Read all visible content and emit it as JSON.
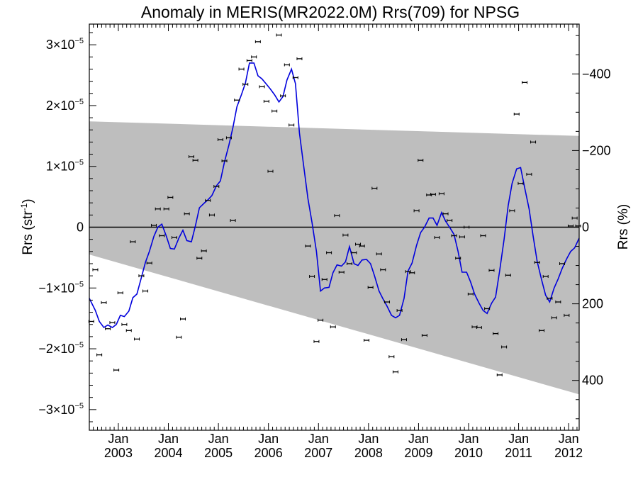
{
  "chart_data": {
    "type": "scatter",
    "title": "Anomaly in MERIS(MR2022.0M) Rrs(709) for NPSG",
    "ylabel_left": "Rrs (str",
    "ylabel_left_sup": "-1",
    "ylabel_left_close": ")",
    "ylabel_right": "Rrs (%)",
    "xlim": [
      2002.42,
      2012.21
    ],
    "ylim_e5": [
      -3.34,
      3.34
    ],
    "yticks_left": [
      {
        "v": 3,
        "mant": "3×10",
        "exp": "−5"
      },
      {
        "v": 2,
        "mant": "2×10",
        "exp": "−5"
      },
      {
        "v": 1,
        "mant": "1×10",
        "exp": "−5"
      },
      {
        "v": 0,
        "mant": "0",
        "exp": ""
      },
      {
        "v": -1,
        "mant": "−1×10",
        "exp": "−5"
      },
      {
        "v": -2,
        "mant": "−2×10",
        "exp": "−5"
      },
      {
        "v": -3,
        "mant": "−3×10",
        "exp": "−5"
      }
    ],
    "right_axis_range_pct": [
      -530,
      530
    ],
    "yticks_right": [
      {
        "v": -400,
        "label": "−400"
      },
      {
        "v": -200,
        "label": "−200"
      },
      {
        "v": 0,
        "label": "0"
      },
      {
        "v": 200,
        "label": "200"
      },
      {
        "v": 400,
        "label": "400"
      }
    ],
    "xticks": [
      {
        "v": 2003.0,
        "top": "Jan",
        "bottom": "2003"
      },
      {
        "v": 2004.0,
        "top": "Jan",
        "bottom": "2004"
      },
      {
        "v": 2005.0,
        "top": "Jan",
        "bottom": "2005"
      },
      {
        "v": 2006.0,
        "top": "Jan",
        "bottom": "2006"
      },
      {
        "v": 2007.0,
        "top": "Jan",
        "bottom": "2007"
      },
      {
        "v": 2008.0,
        "top": "Jan",
        "bottom": "2008"
      },
      {
        "v": 2009.0,
        "top": "Jan",
        "bottom": "2009"
      },
      {
        "v": 2010.0,
        "top": "Jan",
        "bottom": "2010"
      },
      {
        "v": 2011.0,
        "top": "Jan",
        "bottom": "2011"
      },
      {
        "v": 2012.0,
        "top": "Jan",
        "bottom": "2012"
      }
    ],
    "band": {
      "upper": [
        [
          2002.42,
          1.74
        ],
        [
          2012.21,
          1.5
        ]
      ],
      "lower": [
        [
          2002.42,
          -0.45
        ],
        [
          2012.21,
          -2.75
        ]
      ],
      "color": "#bebebe"
    },
    "zero_line": true,
    "series": [
      {
        "kind": "points",
        "color": "#000000",
        "points": [
          [
            2002.46,
            -1.55
          ],
          [
            2002.54,
            -0.7
          ],
          [
            2002.62,
            -2.1
          ],
          [
            2002.71,
            -1.24
          ],
          [
            2002.79,
            -1.67
          ],
          [
            2002.88,
            -1.57
          ],
          [
            2002.96,
            -2.35
          ],
          [
            2003.04,
            -1.08
          ],
          [
            2003.12,
            -1.6
          ],
          [
            2003.21,
            -1.7
          ],
          [
            2003.29,
            -0.24
          ],
          [
            2003.37,
            -1.84
          ],
          [
            2003.46,
            -0.8
          ],
          [
            2003.54,
            -1.05
          ],
          [
            2003.62,
            -0.59
          ],
          [
            2003.71,
            0.03
          ],
          [
            2003.79,
            0.3
          ],
          [
            2003.87,
            -0.14
          ],
          [
            2003.96,
            0.3
          ],
          [
            2004.04,
            0.49
          ],
          [
            2004.12,
            -0.17
          ],
          [
            2004.21,
            -1.81
          ],
          [
            2004.29,
            -1.51
          ],
          [
            2004.37,
            0.22
          ],
          [
            2004.46,
            1.16
          ],
          [
            2004.54,
            1.1
          ],
          [
            2004.62,
            -0.51
          ],
          [
            2004.71,
            -0.39
          ],
          [
            2004.79,
            0.44
          ],
          [
            2004.87,
            0.2
          ],
          [
            2004.96,
            0.67
          ],
          [
            2005.04,
            1.44
          ],
          [
            2005.12,
            1.09
          ],
          [
            2005.21,
            1.47
          ],
          [
            2005.29,
            0.11
          ],
          [
            2005.37,
            2.09
          ],
          [
            2005.46,
            2.6
          ],
          [
            2005.54,
            2.35
          ],
          [
            2005.62,
            2.74
          ],
          [
            2005.71,
            2.8
          ],
          [
            2005.79,
            3.05
          ],
          [
            2005.87,
            2.31
          ],
          [
            2005.96,
            2.07
          ],
          [
            2006.04,
            0.92
          ],
          [
            2006.12,
            1.91
          ],
          [
            2006.21,
            3.16
          ],
          [
            2006.29,
            2.16
          ],
          [
            2006.37,
            2.67
          ],
          [
            2006.46,
            1.68
          ],
          [
            2006.54,
            2.46
          ],
          [
            2006.62,
            2.77
          ],
          [
            2006.79,
            -0.31
          ],
          [
            2006.87,
            -0.81
          ],
          [
            2006.96,
            -1.88
          ],
          [
            2007.04,
            -1.53
          ],
          [
            2007.12,
            -0.86
          ],
          [
            2007.21,
            -0.42
          ],
          [
            2007.29,
            -1.64
          ],
          [
            2007.37,
            0.19
          ],
          [
            2007.46,
            -0.74
          ],
          [
            2007.54,
            -0.13
          ],
          [
            2007.62,
            -0.6
          ],
          [
            2007.71,
            -0.42
          ],
          [
            2007.79,
            -0.28
          ],
          [
            2007.87,
            -0.31
          ],
          [
            2007.96,
            -1.86
          ],
          [
            2008.04,
            -0.99
          ],
          [
            2008.12,
            0.64
          ],
          [
            2008.21,
            -0.44
          ],
          [
            2008.29,
            -0.7
          ],
          [
            2008.37,
            -1.23
          ],
          [
            2008.46,
            -2.13
          ],
          [
            2008.54,
            -2.38
          ],
          [
            2008.62,
            -1.37
          ],
          [
            2008.71,
            -1.85
          ],
          [
            2008.79,
            -0.73
          ],
          [
            2008.87,
            -0.75
          ],
          [
            2008.96,
            0.27
          ],
          [
            2009.04,
            1.1
          ],
          [
            2009.12,
            -1.78
          ],
          [
            2009.21,
            0.53
          ],
          [
            2009.29,
            0.54
          ],
          [
            2009.37,
            -0.17
          ],
          [
            2009.46,
            0.55
          ],
          [
            2009.54,
            0.22
          ],
          [
            2009.62,
            0.11
          ],
          [
            2009.71,
            -0.14
          ],
          [
            2009.79,
            -0.51
          ],
          [
            2009.87,
            -0.16
          ],
          [
            2009.96,
            0.0
          ],
          [
            2010.04,
            -1.1
          ],
          [
            2010.12,
            -1.64
          ],
          [
            2010.21,
            -1.65
          ],
          [
            2010.29,
            -0.14
          ],
          [
            2010.37,
            -1.34
          ],
          [
            2010.46,
            -0.71
          ],
          [
            2010.54,
            -1.75
          ],
          [
            2010.62,
            -2.43
          ],
          [
            2010.71,
            -1.97
          ],
          [
            2010.79,
            -0.79
          ],
          [
            2010.87,
            0.27
          ],
          [
            2010.96,
            1.86
          ],
          [
            2011.04,
            0.72
          ],
          [
            2011.12,
            2.38
          ],
          [
            2011.21,
            0.87
          ],
          [
            2011.29,
            1.4
          ],
          [
            2011.37,
            -0.58
          ],
          [
            2011.46,
            -1.7
          ],
          [
            2011.54,
            -0.81
          ],
          [
            2011.62,
            -1.17
          ],
          [
            2011.71,
            -1.49
          ],
          [
            2011.79,
            -1.23
          ],
          [
            2011.87,
            -0.6
          ],
          [
            2011.96,
            -1.45
          ],
          [
            2012.04,
            0.02
          ],
          [
            2012.12,
            0.15
          ],
          [
            2012.19,
            0.02
          ]
        ]
      },
      {
        "kind": "line",
        "color": "#0000dd",
        "points": [
          [
            2002.42,
            -1.17
          ],
          [
            2002.54,
            -1.37
          ],
          [
            2002.62,
            -1.55
          ],
          [
            2002.71,
            -1.65
          ],
          [
            2002.79,
            -1.61
          ],
          [
            2002.88,
            -1.65
          ],
          [
            2002.96,
            -1.6
          ],
          [
            2003.04,
            -1.45
          ],
          [
            2003.12,
            -1.47
          ],
          [
            2003.21,
            -1.38
          ],
          [
            2003.29,
            -1.16
          ],
          [
            2003.37,
            -1.1
          ],
          [
            2003.46,
            -0.83
          ],
          [
            2003.54,
            -0.58
          ],
          [
            2003.62,
            -0.4
          ],
          [
            2003.71,
            -0.15
          ],
          [
            2003.79,
            0.0
          ],
          [
            2003.87,
            0.05
          ],
          [
            2003.96,
            -0.15
          ],
          [
            2004.04,
            -0.35
          ],
          [
            2004.12,
            -0.36
          ],
          [
            2004.21,
            -0.18
          ],
          [
            2004.29,
            -0.05
          ],
          [
            2004.37,
            -0.22
          ],
          [
            2004.46,
            -0.24
          ],
          [
            2004.54,
            0.02
          ],
          [
            2004.62,
            0.32
          ],
          [
            2004.71,
            0.39
          ],
          [
            2004.79,
            0.45
          ],
          [
            2004.87,
            0.52
          ],
          [
            2004.96,
            0.68
          ],
          [
            2005.04,
            0.76
          ],
          [
            2005.12,
            1.07
          ],
          [
            2005.21,
            1.35
          ],
          [
            2005.29,
            1.64
          ],
          [
            2005.37,
            1.98
          ],
          [
            2005.46,
            2.18
          ],
          [
            2005.54,
            2.37
          ],
          [
            2005.62,
            2.7
          ],
          [
            2005.71,
            2.7
          ],
          [
            2005.79,
            2.49
          ],
          [
            2005.87,
            2.44
          ],
          [
            2005.96,
            2.35
          ],
          [
            2006.04,
            2.27
          ],
          [
            2006.12,
            2.18
          ],
          [
            2006.21,
            2.06
          ],
          [
            2006.29,
            2.15
          ],
          [
            2006.37,
            2.42
          ],
          [
            2006.46,
            2.6
          ],
          [
            2006.54,
            2.36
          ],
          [
            2006.62,
            1.55
          ],
          [
            2006.71,
            0.97
          ],
          [
            2006.79,
            0.47
          ],
          [
            2006.87,
            0.08
          ],
          [
            2006.96,
            -0.4
          ],
          [
            2007.04,
            -1.05
          ],
          [
            2007.12,
            -1.0
          ],
          [
            2007.21,
            -0.99
          ],
          [
            2007.29,
            -0.75
          ],
          [
            2007.37,
            -0.62
          ],
          [
            2007.46,
            -0.64
          ],
          [
            2007.54,
            -0.57
          ],
          [
            2007.62,
            -0.32
          ],
          [
            2007.71,
            -0.6
          ],
          [
            2007.79,
            -0.63
          ],
          [
            2007.87,
            -0.54
          ],
          [
            2007.96,
            -0.53
          ],
          [
            2008.04,
            -0.6
          ],
          [
            2008.12,
            -0.8
          ],
          [
            2008.21,
            -1.05
          ],
          [
            2008.29,
            -1.18
          ],
          [
            2008.37,
            -1.3
          ],
          [
            2008.46,
            -1.45
          ],
          [
            2008.54,
            -1.49
          ],
          [
            2008.62,
            -1.45
          ],
          [
            2008.71,
            -1.17
          ],
          [
            2008.79,
            -0.72
          ],
          [
            2008.87,
            -0.59
          ],
          [
            2008.96,
            -0.3
          ],
          [
            2009.04,
            -0.09
          ],
          [
            2009.12,
            0.0
          ],
          [
            2009.21,
            0.15
          ],
          [
            2009.29,
            0.15
          ],
          [
            2009.37,
            0.03
          ],
          [
            2009.46,
            0.24
          ],
          [
            2009.54,
            0.1
          ],
          [
            2009.62,
            0.0
          ],
          [
            2009.71,
            -0.12
          ],
          [
            2009.79,
            -0.4
          ],
          [
            2009.87,
            -0.74
          ],
          [
            2009.96,
            -0.74
          ],
          [
            2010.04,
            -0.9
          ],
          [
            2010.12,
            -1.1
          ],
          [
            2010.21,
            -1.25
          ],
          [
            2010.29,
            -1.37
          ],
          [
            2010.37,
            -1.42
          ],
          [
            2010.46,
            -1.25
          ],
          [
            2010.54,
            -1.15
          ],
          [
            2010.62,
            -0.72
          ],
          [
            2010.71,
            -0.2
          ],
          [
            2010.79,
            0.35
          ],
          [
            2010.87,
            0.72
          ],
          [
            2010.96,
            0.96
          ],
          [
            2011.04,
            0.98
          ],
          [
            2011.12,
            0.65
          ],
          [
            2011.21,
            0.3
          ],
          [
            2011.29,
            -0.15
          ],
          [
            2011.37,
            -0.56
          ],
          [
            2011.46,
            -0.87
          ],
          [
            2011.54,
            -1.12
          ],
          [
            2011.62,
            -1.23
          ],
          [
            2011.71,
            -1.0
          ],
          [
            2011.79,
            -0.85
          ],
          [
            2011.87,
            -0.68
          ],
          [
            2011.96,
            -0.52
          ],
          [
            2012.04,
            -0.4
          ],
          [
            2012.12,
            -0.34
          ],
          [
            2012.21,
            -0.18
          ]
        ]
      }
    ],
    "grid": false,
    "legend": "none"
  }
}
